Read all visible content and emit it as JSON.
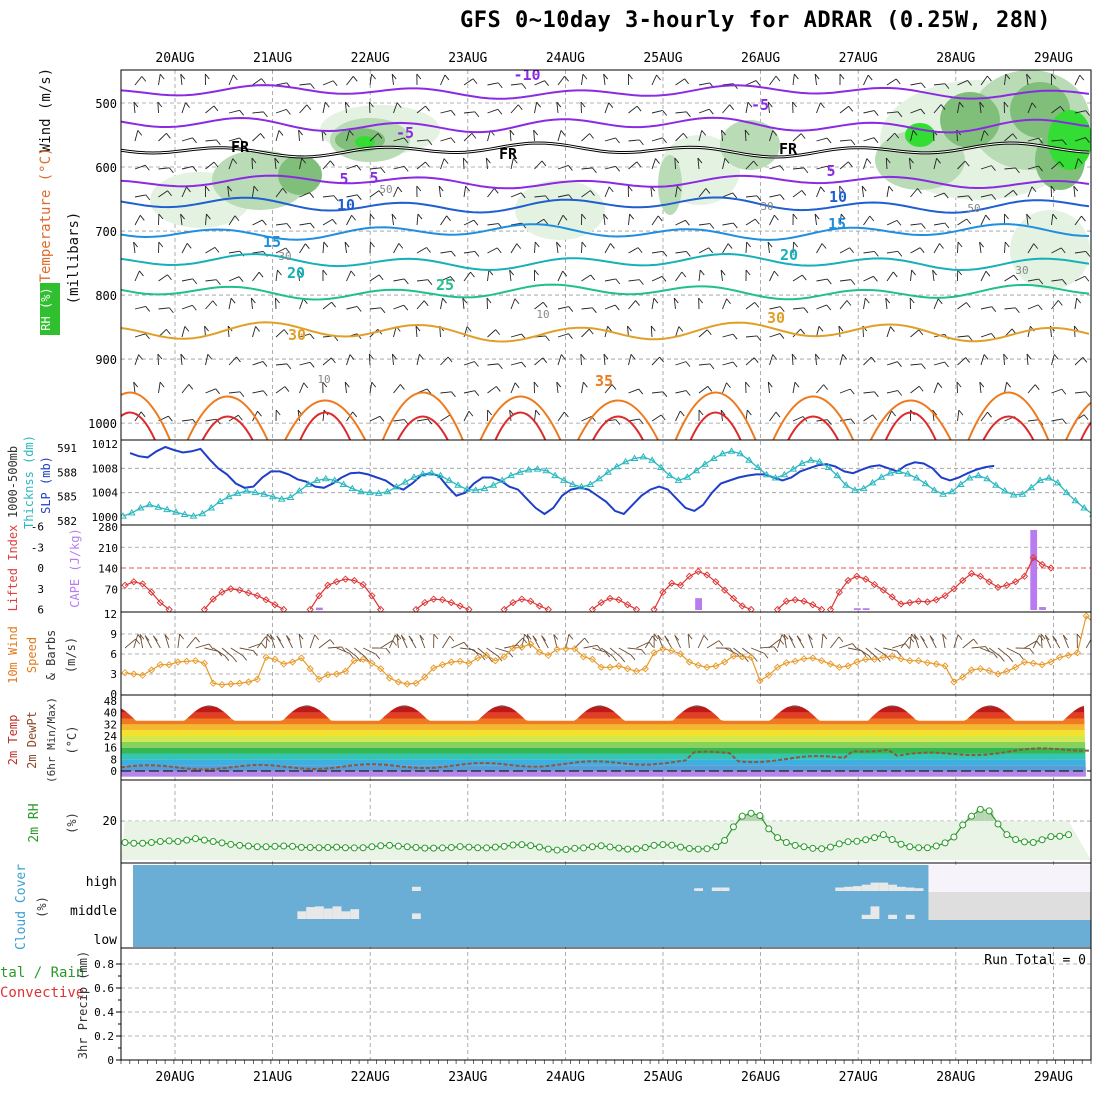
{
  "title": "GFS 0~10day 3-hourly for ADRAR (0.25W, 28N)",
  "dates": [
    "20AUG",
    "21AUG",
    "22AUG",
    "23AUG",
    "24AUG",
    "25AUG",
    "26AUG",
    "27AUG",
    "28AUG",
    "29AUG"
  ],
  "colors": {
    "frame": "#000000",
    "grid": "#9a9a9a",
    "rh_light": "#e4f2e2",
    "rh_mid": "#b9dbb6",
    "rh_dark": "#7fbf7a",
    "rh_bright": "#33dd33",
    "slp": "#1f3fc8",
    "thickness": "#2ab8c0",
    "lifted": "#dd3333",
    "cape": "#b87cf0",
    "wind": "#e89a2a",
    "barb": "#6b4a2f",
    "rh2m": "#2a9a2a",
    "rh2m_fill": "#e3f1e1",
    "cloud": "#6aaed6",
    "cloud_clear": "#e8e8e8",
    "dewpt": "#8b5a3c"
  },
  "labels": {
    "p1_title": "Wind (m/s)",
    "p1_temp": "Temperature (°C)",
    "p1_rh": "RH (%)",
    "p1_units": "(millibars)",
    "p2_a": "1000-500mb",
    "p2_b": "Thicknss (dm)",
    "p2_c": "SLP (mb)",
    "p3_a": "Lifted Index",
    "p3_b": "CAPE (J/kg)",
    "p4_a": "10m Wind",
    "p4_b": "Speed",
    "p4_c": "& Barbs",
    "p4_d": "(m/s)",
    "p5_a": "2m Temp",
    "p5_b": "2m DewPt",
    "p5_c": "(6hr Min/Max)",
    "p5_d": "(°C)",
    "p6_a": "2m RH",
    "p6_b": "(%)",
    "p7_a": "Cloud Cover",
    "p7_b": "(%)",
    "p8_a": "tal / Rain",
    "p8_b": "Convective",
    "p8_c": "3hr Precip (mm)",
    "run_total": "Run Total = 0"
  },
  "chart_data": [
    {
      "type": "heatmap",
      "name": "upper-air cross section",
      "ylabel": "millibars",
      "ylim": [
        1000,
        450
      ],
      "yticks": [
        500,
        600,
        700,
        800,
        900,
        1000
      ],
      "isotherm_levels": [
        -10,
        -5,
        0,
        5,
        10,
        15,
        20,
        25,
        30,
        35
      ],
      "isotherm_labels": [
        "-10",
        "-5",
        "-5",
        "FR",
        "FR",
        "FR",
        "5",
        "5",
        "5",
        "10",
        "10",
        "15",
        "15",
        "20",
        "20",
        "25",
        "30",
        "30",
        "35"
      ],
      "rh_contour_labels": [
        "50",
        "50",
        "30",
        "30",
        "30",
        "10",
        "10"
      ]
    },
    {
      "type": "line",
      "name": "SLP and thickness",
      "series": [
        {
          "name": "SLP (mb)",
          "axis": "right",
          "ylim": [
            1000,
            1012
          ],
          "yticks": [
            1000,
            1004,
            1008,
            1012
          ],
          "values": [
            1010.5,
            1010,
            1009.8,
            1010.8,
            1011.5,
            1011,
            1010.6,
            1010.8,
            1011.2,
            1009.5,
            1008,
            1007,
            1005.5,
            1004.8,
            1005,
            1006.5,
            1007.5,
            1007.5,
            1007,
            1006.2,
            1005.8,
            1005,
            1004.8,
            1005.5,
            1006.5,
            1007.2,
            1007.3,
            1007,
            1006.5,
            1006,
            1005,
            1004.5,
            1005.5,
            1006.8,
            1007.2,
            1006.8,
            1005,
            1003.5,
            1004,
            1005.5,
            1006.5,
            1006.5,
            1006,
            1005,
            1004.5,
            1003,
            1001.5,
            1000.5,
            1001.5,
            1003.5,
            1004.5,
            1004.8,
            1004.5,
            1003.5,
            1002.5,
            1001,
            1000.5,
            1002,
            1003.5,
            1004.5,
            1005,
            1004.5,
            1003,
            1001.5,
            1001,
            1002,
            1004,
            1005.5,
            1006,
            1006.5,
            1006.8,
            1007,
            1007,
            1006.5,
            1006,
            1006.5,
            1007.5,
            1008,
            1008.5,
            1008.7,
            1008.3,
            1007.5,
            1007.2,
            1007.8,
            1008.3,
            1008.5,
            1008,
            1007.5,
            1008.5,
            1009,
            1008.8,
            1008,
            1006.5,
            1006,
            1006.5,
            1007.2,
            1007.8,
            1008.2,
            1008.4
          ]
        },
        {
          "name": "1000-500mb Thicknss (dm)",
          "axis": "left",
          "ylim": [
            582,
            591
          ],
          "yticks": [
            582,
            585,
            588,
            591
          ],
          "values": [
            582.6,
            583,
            583.6,
            584,
            583.7,
            583.4,
            583.1,
            582.8,
            582.6,
            582.9,
            583.6,
            584.4,
            585,
            585.4,
            585.7,
            585.5,
            585.3,
            585,
            584.7,
            584.9,
            585.7,
            586.5,
            587,
            587.2,
            587,
            586.5,
            586,
            585.6,
            585.5,
            585.4,
            585.6,
            586.2,
            586.8,
            587.4,
            587.8,
            587.9,
            587.6,
            587,
            586.4,
            585.9,
            585.8,
            586,
            586.4,
            587,
            587.6,
            588,
            588.3,
            588.4,
            588.2,
            587.6,
            587,
            586.5,
            586.2,
            586.5,
            587.2,
            588,
            588.7,
            589.3,
            589.7,
            589.9,
            589.5,
            588.6,
            587.6,
            587,
            587.4,
            588.2,
            589,
            589.7,
            590.3,
            590.6,
            590.3,
            589.5,
            588.6,
            587.7,
            587.3,
            587.7,
            588.4,
            589.1,
            589.5,
            589.3,
            588.6,
            587.6,
            586.4,
            585.8,
            586,
            586.7,
            587.4,
            587.9,
            588.1,
            587.8,
            587.3,
            586.6,
            585.8,
            585.3,
            585.6,
            586.5,
            587.3,
            587.6,
            587.2,
            586.4,
            585.7,
            585.2,
            585.3,
            586.1,
            587,
            587.3,
            586.7,
            585.5,
            584.5,
            583.6,
            582.8
          ]
        }
      ]
    },
    {
      "type": "line",
      "name": "lifted index and CAPE",
      "lifted_ylim": [
        6,
        -6
      ],
      "lifted_yticks": [
        6,
        3,
        0,
        -3,
        -6
      ],
      "cape_ylim": [
        0,
        280
      ],
      "cape_yticks": [
        70,
        140,
        210,
        280
      ],
      "lifted_segments": [
        {
          "start": 0,
          "values": [
            2.5,
            2.0,
            2.3,
            3.5,
            5.0,
            6.0
          ]
        },
        {
          "start": 9,
          "values": [
            6.0,
            4.5,
            3.5,
            3.0,
            3.2,
            3.6,
            4.0,
            4.6,
            5.3,
            6.0
          ]
        },
        {
          "start": 21,
          "values": [
            6.0,
            4.0,
            2.5,
            2.0,
            1.6,
            1.8,
            2.4,
            4.0,
            6.0
          ]
        },
        {
          "start": 33,
          "values": [
            6.0,
            5.0,
            4.5,
            4.6,
            5.0,
            5.5,
            6.0
          ]
        },
        {
          "start": 43,
          "values": [
            6.0,
            5.0,
            4.5,
            4.8,
            5.5,
            6.0
          ]
        },
        {
          "start": 53,
          "values": [
            6.0,
            5.0,
            4.4,
            4.6,
            5.3,
            6.0
          ]
        },
        {
          "start": 60,
          "values": [
            6.0,
            3.5,
            2.2,
            2.5,
            1.2,
            0.5,
            1.0,
            2.0,
            3.2,
            4.4,
            5.5,
            6.0
          ]
        },
        {
          "start": 74,
          "values": [
            6.0,
            4.8,
            4.6,
            4.8,
            5.3,
            6.0
          ]
        },
        {
          "start": 80,
          "values": [
            6.0,
            3.5,
            1.8,
            1.2,
            1.6,
            2.4,
            3.2,
            4.2,
            5.2,
            5.0,
            4.8,
            4.9,
            4.6,
            4.0,
            3.0,
            1.8,
            0.8,
            1.2,
            2.0,
            2.8,
            2.5,
            2.0,
            1.2,
            -1.5,
            -0.5,
            0.0
          ]
        }
      ],
      "cape_bars": [
        {
          "i": 22,
          "v": 8
        },
        {
          "i": 65,
          "v": 40
        },
        {
          "i": 83,
          "v": 6
        },
        {
          "i": 84,
          "v": 6
        },
        {
          "i": 103,
          "v": 270
        },
        {
          "i": 104,
          "v": 10
        }
      ]
    },
    {
      "type": "line",
      "name": "10m wind speed",
      "ylim": [
        0,
        12
      ],
      "yticks": [
        0,
        3,
        6,
        9,
        12
      ],
      "values": [
        3.2,
        3.0,
        2.8,
        3.6,
        4.4,
        4.4,
        4.8,
        4.9,
        5.0,
        4.6,
        1.6,
        1.4,
        1.5,
        1.6,
        1.8,
        2.2,
        5.5,
        5.2,
        4.5,
        4.8,
        5.4,
        3.8,
        2.2,
        2.9,
        3.0,
        3.4,
        5.0,
        5.2,
        4.6,
        3.8,
        2.4,
        1.8,
        1.5,
        1.6,
        2.5,
        3.9,
        4.4,
        4.8,
        4.9,
        4.6,
        5.4,
        5.8,
        5.0,
        5.6,
        6.9,
        7.0,
        7.5,
        6.3,
        5.8,
        6.7,
        6.8,
        6.8,
        5.6,
        5.2,
        4.0,
        4.0,
        4.2,
        3.8,
        3.4,
        3.8,
        6.2,
        6.8,
        6.5,
        6.0,
        4.8,
        4.3,
        4.0,
        4.2,
        4.8,
        5.7,
        5.6,
        5.5,
        2.0,
        2.8,
        4.0,
        4.7,
        4.9,
        5.3,
        5.4,
        5.0,
        4.5,
        4.0,
        4.2,
        4.8,
        5.2,
        5.2,
        5.5,
        5.7,
        5.3,
        5.0,
        5.0,
        4.7,
        4.5,
        4.2,
        1.8,
        2.5,
        3.6,
        3.8,
        3.5,
        3.0,
        3.4,
        4.0,
        4.8,
        4.6,
        4.4,
        4.8,
        5.5,
        5.8,
        6.2,
        11.7,
        10.5
      ]
    },
    {
      "type": "area",
      "name": "2m temperature and dewpoint",
      "ylim": [
        -4,
        48
      ],
      "yticks": [
        0,
        8,
        16,
        24,
        32,
        40,
        48
      ],
      "temp_min": 33,
      "temp_max": 44,
      "dewpt_first": 2.5,
      "dewpt_last": 15.5,
      "color_bands": [
        {
          "from": -4,
          "to": 0,
          "color": "#b784e8"
        },
        {
          "from": 0,
          "to": 4,
          "color": "#5a9cd6"
        },
        {
          "from": 4,
          "to": 8,
          "color": "#3cb0e0"
        },
        {
          "from": 8,
          "to": 12,
          "color": "#35c6b2"
        },
        {
          "from": 12,
          "to": 16,
          "color": "#36b850"
        },
        {
          "from": 16,
          "to": 20,
          "color": "#86d25a"
        },
        {
          "from": 20,
          "to": 24,
          "color": "#d4e84e"
        },
        {
          "from": 24,
          "to": 28,
          "color": "#f2e22c"
        },
        {
          "from": 28,
          "to": 32,
          "color": "#f4b82c"
        },
        {
          "from": 32,
          "to": 36,
          "color": "#ef7a22"
        },
        {
          "from": 36,
          "to": 40,
          "color": "#e04020"
        },
        {
          "from": 40,
          "to": 44,
          "color": "#c01818"
        },
        {
          "from": 44,
          "to": 48,
          "color": "#6a3a30"
        }
      ]
    },
    {
      "type": "area",
      "name": "2m relative humidity",
      "ylim": [
        0,
        38
      ],
      "yticks": [
        20
      ],
      "values": [
        9,
        8.6,
        8.6,
        9,
        9.5,
        9.8,
        9.5,
        10.2,
        11,
        10.2,
        9.5,
        8.8,
        8,
        7.5,
        7.2,
        6.8,
        6.8,
        7,
        7.2,
        7,
        6.5,
        6.4,
        6.3,
        6.4,
        6.6,
        6.3,
        6.2,
        6.3,
        6.8,
        7.3,
        7.5,
        7.1,
        6.8,
        6.4,
        6.1,
        6.1,
        6.2,
        6.4,
        6.9,
        6.6,
        6.3,
        6.2,
        6.6,
        7,
        7.7,
        7.9,
        7.4,
        6.6,
        5.6,
        5.1,
        5.4,
        6,
        6.2,
        6.8,
        7.3,
        6.7,
        6.1,
        5.6,
        5.7,
        6.4,
        7.5,
        7.9,
        7.6,
        6.6,
        5.9,
        5.6,
        5.8,
        6.8,
        10,
        17,
        22.5,
        24,
        22.8,
        16,
        11.5,
        9,
        7.5,
        6.8,
        6,
        5.8,
        6.6,
        8.3,
        9.4,
        9.6,
        10.4,
        11.5,
        13,
        10.5,
        8.1,
        6.8,
        6.3,
        6.3,
        7.2,
        8.8,
        11.8,
        18,
        22.5,
        26,
        25.2,
        18.5,
        13,
        10.5,
        9.3,
        9,
        10.4,
        12,
        12.2,
        13
      ]
    },
    {
      "type": "heatmap",
      "name": "cloud cover",
      "categories": [
        "high",
        "middle",
        "low"
      ],
      "mid_cells": [
        {
          "i": 20,
          "h": 0.55
        },
        {
          "i": 21,
          "h": 0.85
        },
        {
          "i": 22,
          "h": 0.9
        },
        {
          "i": 23,
          "h": 0.75
        },
        {
          "i": 24,
          "h": 0.9
        },
        {
          "i": 25,
          "h": 0.55
        },
        {
          "i": 26,
          "h": 0.7
        },
        {
          "i": 33,
          "h": 0.4
        },
        {
          "i": 84,
          "h": 0.3
        },
        {
          "i": 85,
          "h": 0.9
        },
        {
          "i": 87,
          "h": 0.3
        },
        {
          "i": 89,
          "h": 0.3
        }
      ],
      "high_cells": [
        {
          "i": 33,
          "h": 0.3
        },
        {
          "i": 65,
          "h": 0.2
        },
        {
          "i": 67,
          "h": 0.25
        },
        {
          "i": 68,
          "h": 0.25
        },
        {
          "i": 81,
          "h": 0.25
        },
        {
          "i": 82,
          "h": 0.3
        },
        {
          "i": 83,
          "h": 0.35
        },
        {
          "i": 84,
          "h": 0.45
        },
        {
          "i": 85,
          "h": 0.6
        },
        {
          "i": 86,
          "h": 0.6
        },
        {
          "i": 87,
          "h": 0.45
        },
        {
          "i": 88,
          "h": 0.3
        },
        {
          "i": 89,
          "h": 0.25
        },
        {
          "i": 90,
          "h": 0.2
        }
      ]
    },
    {
      "type": "bar",
      "name": "3hr precipitation",
      "ylim": [
        0,
        0.9
      ],
      "yticks": [
        0,
        0.2,
        0.4,
        0.6,
        0.8
      ],
      "ytick_labels": [
        "0",
        "0.2",
        "0.4",
        "0.6",
        "0.8"
      ],
      "values": [],
      "run_total": 0
    }
  ]
}
